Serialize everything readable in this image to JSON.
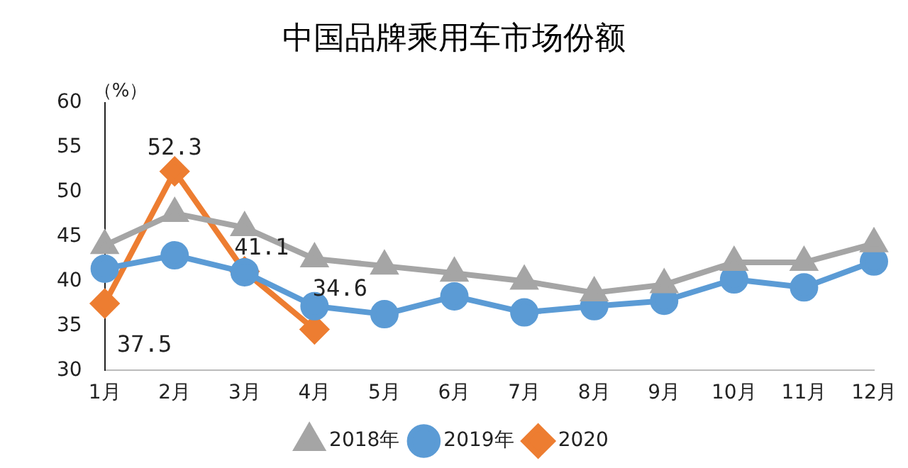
{
  "chart_data": {
    "type": "line",
    "title": "中国品牌乘用车市场份额",
    "ylabel": "（%）",
    "categories": [
      "1月",
      "2月",
      "3月",
      "4月",
      "5月",
      "6月",
      "7月",
      "8月",
      "9月",
      "10月",
      "11月",
      "12月"
    ],
    "series": [
      {
        "name": "2018年",
        "color": "#a5a5a5",
        "marker": "triangle",
        "values": [
          44,
          47.6,
          46,
          42.5,
          41.7,
          40.9,
          40,
          38.7,
          39.6,
          42.1,
          42.1,
          44.2
        ]
      },
      {
        "name": "2019年",
        "color": "#5b9bd5",
        "marker": "circle",
        "values": [
          41.4,
          42.9,
          41,
          37.2,
          36.3,
          38.3,
          36.5,
          37.2,
          37.8,
          40.2,
          39.3,
          42.2
        ]
      },
      {
        "name": "2020",
        "color": "#ed7d31",
        "marker": "diamond",
        "values": [
          37.5,
          52.3,
          41.1,
          34.6,
          null,
          null,
          null,
          null,
          null,
          null,
          null,
          null
        ],
        "value_labels": [
          "37.5",
          "52.3",
          "41.1",
          "34.6",
          null,
          null,
          null,
          null,
          null,
          null,
          null,
          null
        ]
      }
    ],
    "ylim": [
      30,
      60
    ],
    "yticks": [
      30,
      35,
      40,
      45,
      50,
      55,
      60
    ],
    "grid": false,
    "legend": "bottom"
  }
}
